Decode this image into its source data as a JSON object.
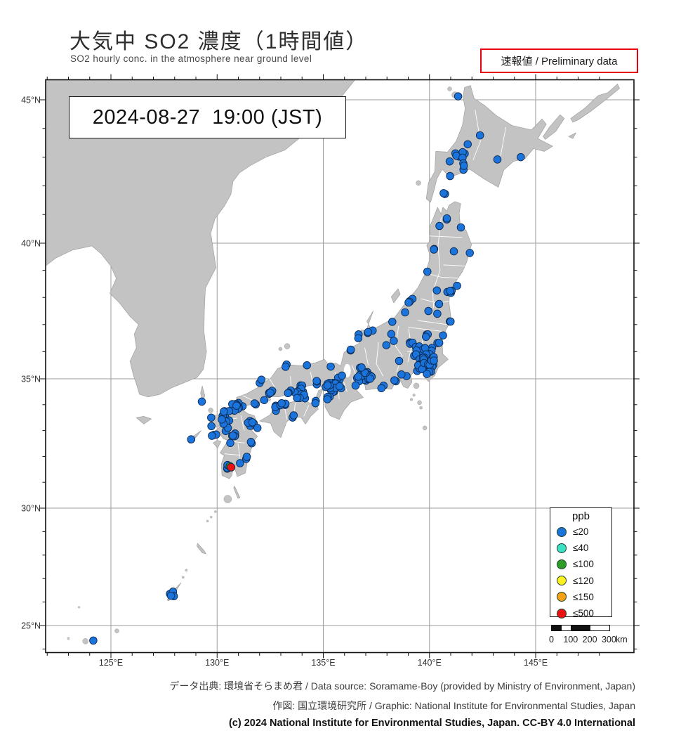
{
  "header": {
    "title": "大気中 SO2 濃度（1時間値）",
    "subtitle": "SO2 hourly conc. in the atmosphere near ground level",
    "preliminary": "速報値 / Preliminary data"
  },
  "timestamp": "2024-08-27  19:00 (JST)",
  "map": {
    "lon_ticks": [
      {
        "label": "125°E",
        "lon": 125
      },
      {
        "label": "130°E",
        "lon": 130
      },
      {
        "label": "135°E",
        "lon": 135
      },
      {
        "label": "140°E",
        "lon": 140
      },
      {
        "label": "145°E",
        "lon": 145
      }
    ],
    "lat_ticks": [
      {
        "label": "45°N",
        "lat": 45
      },
      {
        "label": "40°N",
        "lat": 40
      },
      {
        "label": "35°N",
        "lat": 35
      },
      {
        "label": "30°N",
        "lat": 30
      },
      {
        "label": "25°N",
        "lat": 25
      }
    ],
    "colors": {
      "sea": "#ffffff",
      "land": "#c3c3c3",
      "coast": "#a0a0a0",
      "grid": "#9b9b9b",
      "frame": "#111111",
      "prefecture_border": "#ffffff",
      "lake": "#ffffff",
      "tick": "#111111",
      "tick_label": "#333333"
    }
  },
  "stations": {
    "dot": {
      "radius": 5.3,
      "fill": "#1b74dc",
      "stroke": "#0d2b52"
    },
    "clusters": [
      [
        141.35,
        45.12,
        1,
        0
      ],
      [
        142.38,
        43.76,
        1,
        0
      ],
      [
        141.8,
        43.45,
        1,
        0
      ],
      [
        141.45,
        43.0,
        8,
        0.26
      ],
      [
        140.95,
        42.85,
        1,
        0
      ],
      [
        141.62,
        42.63,
        2,
        0.1
      ],
      [
        140.97,
        42.34,
        1,
        0
      ],
      [
        140.75,
        41.8,
        2,
        0.1
      ],
      [
        144.3,
        43.0,
        1,
        0
      ],
      [
        143.2,
        42.92,
        1,
        0
      ],
      [
        140.75,
        40.85,
        2,
        0.1
      ],
      [
        141.48,
        40.55,
        1,
        0
      ],
      [
        140.47,
        40.6,
        1,
        0
      ],
      [
        140.12,
        39.72,
        2,
        0.1
      ],
      [
        141.15,
        39.7,
        1,
        0
      ],
      [
        141.9,
        39.64,
        1,
        0
      ],
      [
        139.9,
        38.95,
        1,
        0
      ],
      [
        140.35,
        38.26,
        1,
        0
      ],
      [
        140.93,
        38.3,
        5,
        0.18
      ],
      [
        141.3,
        38.43,
        1,
        0
      ],
      [
        140.45,
        37.76,
        1,
        0
      ],
      [
        140.37,
        37.4,
        1,
        0
      ],
      [
        139.95,
        37.5,
        1,
        0
      ],
      [
        140.9,
        37.06,
        2,
        0.1
      ],
      [
        139.06,
        37.92,
        4,
        0.15
      ],
      [
        138.85,
        37.45,
        1,
        0
      ],
      [
        138.25,
        37.1,
        1,
        0
      ],
      [
        137.22,
        36.7,
        3,
        0.14
      ],
      [
        136.64,
        36.57,
        2,
        0.1
      ],
      [
        136.26,
        36.08,
        2,
        0.1
      ],
      [
        138.2,
        36.65,
        1,
        0
      ],
      [
        137.97,
        36.24,
        1,
        0
      ],
      [
        138.32,
        36.4,
        1,
        0
      ],
      [
        138.57,
        35.66,
        1,
        0
      ],
      [
        139.08,
        36.42,
        3,
        0.16
      ],
      [
        139.88,
        36.56,
        3,
        0.16
      ],
      [
        140.46,
        36.38,
        2,
        0.1
      ],
      [
        140.64,
        36.6,
        1,
        0
      ],
      [
        140.2,
        36.1,
        2,
        0.12
      ],
      [
        139.4,
        36.15,
        2,
        0.12
      ],
      [
        139.55,
        35.97,
        10,
        0.28
      ],
      [
        139.78,
        35.7,
        16,
        0.25
      ],
      [
        139.58,
        35.44,
        10,
        0.18
      ],
      [
        140.1,
        35.62,
        8,
        0.22
      ],
      [
        140.02,
        35.33,
        2,
        0.1
      ],
      [
        139.88,
        35.18,
        1,
        0
      ],
      [
        138.92,
        35.1,
        1,
        0
      ],
      [
        138.68,
        35.16,
        1,
        0
      ],
      [
        138.4,
        34.98,
        2,
        0.1
      ],
      [
        137.74,
        34.73,
        2,
        0.12
      ],
      [
        136.95,
        35.12,
        14,
        0.24
      ],
      [
        136.78,
        35.42,
        2,
        0.1
      ],
      [
        137.22,
        35.02,
        3,
        0.14
      ],
      [
        136.64,
        34.98,
        3,
        0.12
      ],
      [
        136.52,
        34.74,
        1,
        0
      ],
      [
        135.78,
        35.02,
        3,
        0.12
      ],
      [
        135.5,
        34.66,
        17,
        0.22
      ],
      [
        135.22,
        34.7,
        5,
        0.14
      ],
      [
        134.72,
        34.82,
        3,
        0.12
      ],
      [
        135.8,
        34.66,
        2,
        0.1
      ],
      [
        135.2,
        34.25,
        3,
        0.12
      ],
      [
        135.35,
        35.45,
        1,
        0
      ],
      [
        134.23,
        35.5,
        1,
        0
      ],
      [
        133.2,
        35.45,
        2,
        0.13
      ],
      [
        132.1,
        34.92,
        2,
        0.12
      ],
      [
        133.93,
        34.62,
        5,
        0.15
      ],
      [
        133.72,
        34.53,
        3,
        0.1
      ],
      [
        133.37,
        34.5,
        3,
        0.1
      ],
      [
        132.48,
        34.42,
        6,
        0.15
      ],
      [
        132.22,
        34.18,
        1,
        0
      ],
      [
        131.8,
        34.06,
        2,
        0.1
      ],
      [
        131.25,
        33.97,
        2,
        0.1
      ],
      [
        130.96,
        34.02,
        2,
        0.08
      ],
      [
        134.06,
        34.32,
        3,
        0.12
      ],
      [
        133.82,
        34.27,
        2,
        0.08
      ],
      [
        134.56,
        34.08,
        2,
        0.1
      ],
      [
        132.78,
        33.86,
        4,
        0.12
      ],
      [
        133.28,
        33.97,
        2,
        0.1
      ],
      [
        133.0,
        34.05,
        2,
        0.08
      ],
      [
        133.55,
        33.57,
        2,
        0.1
      ],
      [
        130.86,
        33.88,
        8,
        0.17
      ],
      [
        130.42,
        33.6,
        8,
        0.18
      ],
      [
        130.52,
        33.33,
        2,
        0.1
      ],
      [
        130.46,
        33.04,
        2,
        0.1
      ],
      [
        130.3,
        33.26,
        1,
        0
      ],
      [
        130.22,
        33.43,
        1,
        0
      ],
      [
        129.87,
        32.76,
        3,
        0.12
      ],
      [
        129.73,
        33.17,
        1,
        0
      ],
      [
        129.28,
        34.12,
        1,
        0
      ],
      [
        129.72,
        33.5,
        1,
        0
      ],
      [
        128.78,
        32.66,
        1,
        0
      ],
      [
        130.75,
        32.81,
        5,
        0.14
      ],
      [
        130.62,
        32.52,
        1,
        0
      ],
      [
        131.6,
        33.25,
        5,
        0.15
      ],
      [
        131.9,
        33.1,
        1,
        0
      ],
      [
        131.68,
        32.59,
        2,
        0.1
      ],
      [
        131.45,
        31.92,
        2,
        0.1
      ],
      [
        131.08,
        31.74,
        1,
        0
      ],
      [
        130.54,
        31.6,
        4,
        0.12
      ],
      [
        127.85,
        26.35,
        4,
        0.15
      ],
      [
        124.17,
        24.36,
        1,
        0
      ]
    ],
    "special_dots": [
      {
        "lon": 130.6,
        "lat": 31.62,
        "color": "#2f9e28"
      },
      {
        "lon": 130.66,
        "lat": 31.58,
        "color": "#ee1111"
      }
    ]
  },
  "legend": {
    "title": "ppb",
    "items": [
      {
        "label": "≤20",
        "color": "#1b74dc"
      },
      {
        "label": "≤40",
        "color": "#3ce0c3"
      },
      {
        "label": "≤100",
        "color": "#2f9e28"
      },
      {
        "label": "≤120",
        "color": "#fdf021"
      },
      {
        "label": "≤150",
        "color": "#f6a216"
      },
      {
        "label": "≤500",
        "color": "#ee1111"
      }
    ]
  },
  "scalebar": {
    "tick_labels": [
      "0",
      "100",
      "200",
      "300"
    ],
    "unit": "km"
  },
  "footer": {
    "line1": "データ出典: 環境省そらまめ君 / Data source: Soramame-Boy (provided by Ministry of Environment, Japan)",
    "line2": "作図: 国立環境研究所 / Graphic: National Institute for Environmental Studies, Japan",
    "line3": "(c) 2024 National Institute for Environmental Studies, Japan. CC-BY 4.0 International"
  }
}
